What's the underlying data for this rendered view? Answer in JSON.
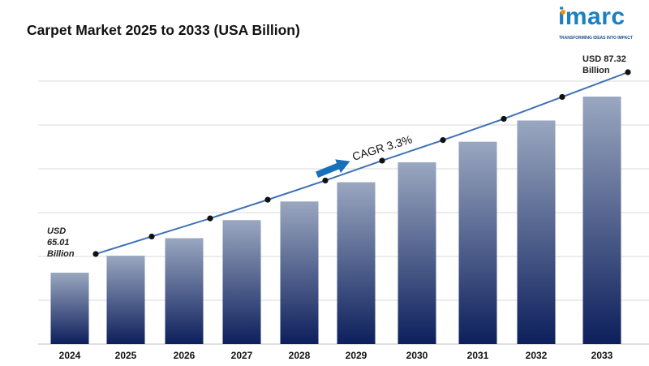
{
  "title": "Carpet Market 2025 to 2033 (USA Billion)",
  "logo": {
    "word": "imarc",
    "tagline": "TRANSFORMING IDEAS INTO IMPACT"
  },
  "annotations": {
    "start": {
      "line1": "USD",
      "line2": "65.01",
      "line3": "Billion"
    },
    "end": {
      "line1": "USD 87.32",
      "line2": "Billion"
    },
    "cagr": "CAGR  3.3%"
  },
  "colors": {
    "bar_top": "#9aa7c0",
    "bar_bottom": "#0d1f5c",
    "line": "#3f72b8",
    "point": "#111111",
    "arrow": "#1770b8",
    "grid": "#d9d9d9"
  },
  "chart_data": {
    "type": "bar",
    "categories": [
      "2024",
      "2025",
      "2026",
      "2027",
      "2028",
      "2029",
      "2030",
      "2031",
      "2032",
      "2033"
    ],
    "values": [
      65.01,
      67.16,
      69.38,
      71.67,
      74.03,
      76.47,
      78.99,
      81.6,
      84.29,
      87.32
    ],
    "line_overlay": true,
    "title": "Carpet Market 2025 to 2033 (USA Billion)",
    "xlabel": "",
    "ylabel": "",
    "grid": true,
    "legend": "none"
  }
}
